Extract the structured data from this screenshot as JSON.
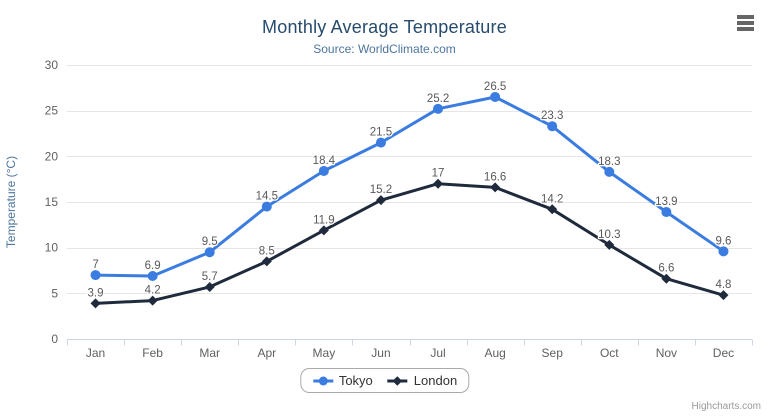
{
  "chart_data": {
    "type": "line",
    "title": "Monthly Average Temperature",
    "subtitle": "Source: WorldClimate.com",
    "categories": [
      "Jan",
      "Feb",
      "Mar",
      "Apr",
      "May",
      "Jun",
      "Jul",
      "Aug",
      "Sep",
      "Oct",
      "Nov",
      "Dec"
    ],
    "xlabel": "",
    "ylabel": "Temperature (°C)",
    "ylim": [
      0,
      30
    ],
    "ytick_interval": 5,
    "grid": true,
    "legend_position": "bottom-center",
    "series": [
      {
        "name": "Tokyo",
        "marker": "circle",
        "color": "#3a7ce0",
        "values": [
          7,
          6.9,
          9.5,
          14.5,
          18.4,
          21.5,
          25.2,
          26.5,
          23.3,
          18.3,
          13.9,
          9.6
        ]
      },
      {
        "name": "London",
        "marker": "diamond",
        "color": "#1f2b3d",
        "values": [
          3.9,
          4.2,
          5.7,
          8.5,
          11.9,
          15.2,
          17,
          16.6,
          14.2,
          10.3,
          6.6,
          4.8
        ]
      }
    ],
    "credit": "Highcharts.com"
  },
  "colors": {
    "title": "#274b6d",
    "subtitle": "#4d759e",
    "axis_title": "#4d759e",
    "tick_label": "#606060",
    "data_label": "#595959",
    "grid_line": "#e6e6e6",
    "axis_line": "#ccd6eb",
    "legend_text": "#333333",
    "legend_border": "#aaaaaa",
    "credit": "#999999",
    "menu_icon": "#666666"
  }
}
